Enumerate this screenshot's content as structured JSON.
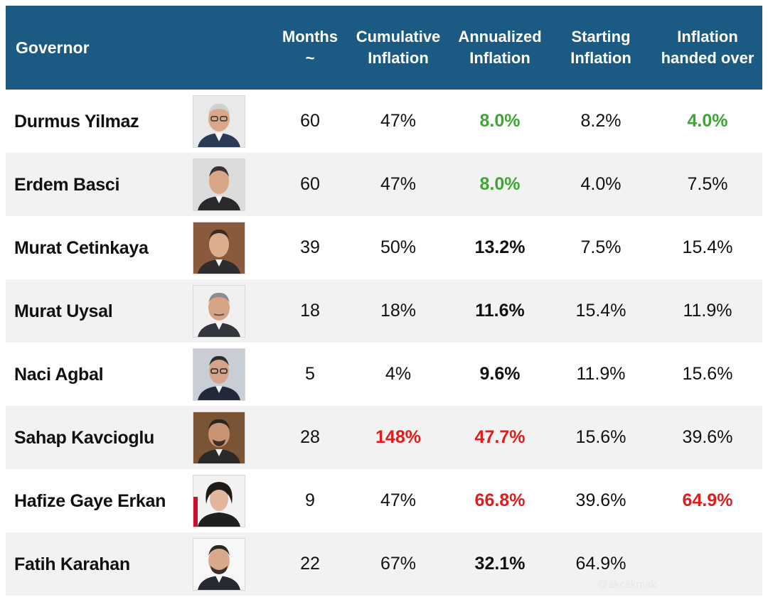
{
  "headers": {
    "governor": "Governor",
    "months": [
      "Months",
      "~"
    ],
    "cumulative": [
      "Cumulative",
      "Inflation"
    ],
    "annualized": [
      "Annualized",
      "Inflation"
    ],
    "starting": [
      "Starting",
      "Inflation"
    ],
    "handed_over": [
      "Inflation",
      "handed over"
    ]
  },
  "rows": [
    {
      "name": "Durmus Yilmaz",
      "photo": "portrait-icon",
      "months": "60",
      "cumulative": "47%",
      "annualized": "8.0%",
      "starting": "8.2%",
      "handed_over": "4.0%"
    },
    {
      "name": "Erdem Basci",
      "photo": "portrait-icon",
      "months": "60",
      "cumulative": "47%",
      "annualized": "8.0%",
      "starting": "4.0%",
      "handed_over": "7.5%"
    },
    {
      "name": "Murat Cetinkaya",
      "photo": "portrait-icon",
      "months": "39",
      "cumulative": "50%",
      "annualized": "13.2%",
      "starting": "7.5%",
      "handed_over": "15.4%"
    },
    {
      "name": "Murat Uysal",
      "photo": "portrait-icon",
      "months": "18",
      "cumulative": "18%",
      "annualized": "11.6%",
      "starting": "15.4%",
      "handed_over": "11.9%"
    },
    {
      "name": "Naci Agbal",
      "photo": "portrait-icon",
      "months": "5",
      "cumulative": "4%",
      "annualized": "9.6%",
      "starting": "11.9%",
      "handed_over": "15.6%"
    },
    {
      "name": "Sahap Kavcioglu",
      "photo": "portrait-icon",
      "months": "28",
      "cumulative": "148%",
      "annualized": "47.7%",
      "starting": "15.6%",
      "handed_over": "39.6%"
    },
    {
      "name": "Hafize Gaye Erkan",
      "photo": "portrait-icon",
      "months": "9",
      "cumulative": "47%",
      "annualized": "66.8%",
      "starting": "39.6%",
      "handed_over": "64.9%"
    },
    {
      "name": "Fatih Karahan",
      "photo": "portrait-icon",
      "months": "22",
      "cumulative": "67%",
      "annualized": "32.1%",
      "starting": "64.9%",
      "handed_over": ""
    }
  ],
  "watermark": "@akcakmak",
  "colors": {
    "header_bg": "#1b5b83",
    "alt_row_bg": "#f2f2f2",
    "good": "#3fa535",
    "bad": "#e31b1b"
  }
}
